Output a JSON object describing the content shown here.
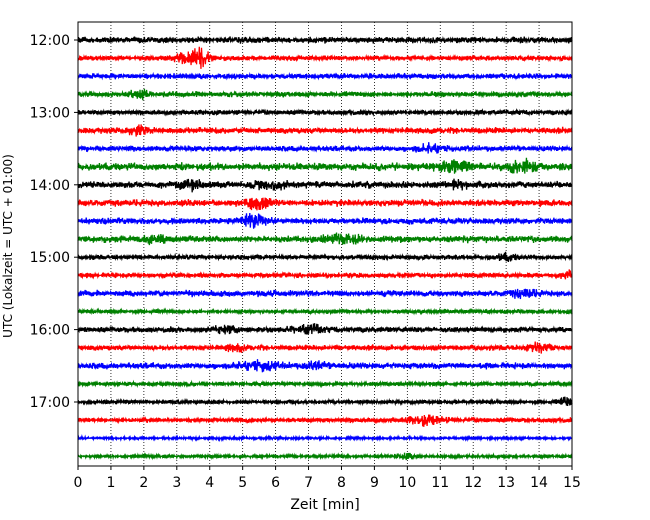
{
  "chart_data": {
    "type": "line",
    "title": "",
    "xlabel": "Zeit  [min]",
    "ylabel": "UTC (Lokalzeit = UTC + 01:00)",
    "xlim": [
      0,
      15
    ],
    "x_ticks": [
      "0",
      "1",
      "2",
      "3",
      "4",
      "5",
      "6",
      "7",
      "8",
      "9",
      "10",
      "11",
      "12",
      "13",
      "14",
      "15"
    ],
    "y_ticks": [
      "12:00",
      "13:00",
      "14:00",
      "15:00",
      "16:00",
      "17:00"
    ],
    "grid": "vertical-dotted",
    "color_cycle": [
      "#000000",
      "#ff0000",
      "#0000ff",
      "#008000"
    ],
    "trace_interval_min": 15,
    "series": [
      {
        "start": "12:00",
        "color": "#000000",
        "level": 0.45,
        "events": []
      },
      {
        "start": "12:15",
        "color": "#ff0000",
        "level": 0.35,
        "events": [
          {
            "x": 3.7,
            "amp": 1.9,
            "width": 0.25
          },
          {
            "x": 3.2,
            "amp": 0.6,
            "width": 0.3
          }
        ]
      },
      {
        "start": "12:30",
        "color": "#0000ff",
        "level": 0.4,
        "events": []
      },
      {
        "start": "12:45",
        "color": "#008000",
        "level": 0.4,
        "events": [
          {
            "x": 1.9,
            "amp": 0.6,
            "width": 0.3
          }
        ]
      },
      {
        "start": "13:00",
        "color": "#000000",
        "level": 0.35,
        "events": []
      },
      {
        "start": "13:15",
        "color": "#ff0000",
        "level": 0.45,
        "events": [
          {
            "x": 1.8,
            "amp": 0.6,
            "width": 0.3
          }
        ]
      },
      {
        "start": "13:30",
        "color": "#0000ff",
        "level": 0.4,
        "events": [
          {
            "x": 10.7,
            "amp": 0.6,
            "width": 0.4
          }
        ]
      },
      {
        "start": "13:45",
        "color": "#008000",
        "level": 0.55,
        "events": [
          {
            "x": 13.5,
            "amp": 0.8,
            "width": 0.5
          },
          {
            "x": 11.5,
            "amp": 0.6,
            "width": 0.5
          }
        ]
      },
      {
        "start": "14:00",
        "color": "#000000",
        "level": 0.5,
        "events": [
          {
            "x": 5.8,
            "amp": 0.7,
            "width": 0.4
          },
          {
            "x": 3.5,
            "amp": 0.6,
            "width": 0.4
          },
          {
            "x": 11.5,
            "amp": 0.6,
            "width": 0.3
          }
        ]
      },
      {
        "start": "14:15",
        "color": "#ff0000",
        "level": 0.5,
        "events": [
          {
            "x": 5.5,
            "amp": 0.8,
            "width": 0.4
          }
        ]
      },
      {
        "start": "14:30",
        "color": "#0000ff",
        "level": 0.45,
        "events": [
          {
            "x": 5.3,
            "amp": 1.1,
            "width": 0.3
          }
        ]
      },
      {
        "start": "14:45",
        "color": "#008000",
        "level": 0.5,
        "events": [
          {
            "x": 2.3,
            "amp": 0.5,
            "width": 0.4
          },
          {
            "x": 8.0,
            "amp": 0.5,
            "width": 0.6
          }
        ]
      },
      {
        "start": "15:00",
        "color": "#000000",
        "level": 0.35,
        "events": [
          {
            "x": 13.0,
            "amp": 0.5,
            "width": 0.3
          }
        ]
      },
      {
        "start": "15:15",
        "color": "#ff0000",
        "level": 0.35,
        "events": [
          {
            "x": 14.9,
            "amp": 0.6,
            "width": 0.2
          }
        ]
      },
      {
        "start": "15:30",
        "color": "#0000ff",
        "level": 0.45,
        "events": [
          {
            "x": 13.5,
            "amp": 0.5,
            "width": 0.4
          }
        ]
      },
      {
        "start": "15:45",
        "color": "#008000",
        "level": 0.3,
        "events": []
      },
      {
        "start": "16:00",
        "color": "#000000",
        "level": 0.4,
        "events": [
          {
            "x": 7.0,
            "amp": 0.6,
            "width": 0.5
          },
          {
            "x": 4.5,
            "amp": 0.5,
            "width": 0.4
          }
        ]
      },
      {
        "start": "16:15",
        "color": "#ff0000",
        "level": 0.4,
        "events": [
          {
            "x": 14.0,
            "amp": 0.6,
            "width": 0.4
          },
          {
            "x": 4.8,
            "amp": 0.5,
            "width": 0.3
          }
        ]
      },
      {
        "start": "16:30",
        "color": "#0000ff",
        "level": 0.45,
        "events": [
          {
            "x": 5.5,
            "amp": 0.6,
            "width": 0.6
          },
          {
            "x": 7.2,
            "amp": 0.6,
            "width": 0.3
          }
        ]
      },
      {
        "start": "16:45",
        "color": "#008000",
        "level": 0.3,
        "events": []
      },
      {
        "start": "17:00",
        "color": "#000000",
        "level": 0.3,
        "events": [
          {
            "x": 14.8,
            "amp": 0.7,
            "width": 0.2
          }
        ]
      },
      {
        "start": "17:15",
        "color": "#ff0000",
        "level": 0.35,
        "events": [
          {
            "x": 10.6,
            "amp": 0.7,
            "width": 0.5
          }
        ]
      },
      {
        "start": "17:30",
        "color": "#0000ff",
        "level": 0.2,
        "events": []
      },
      {
        "start": "17:45",
        "color": "#008000",
        "level": 0.25,
        "events": [
          {
            "x": 10.0,
            "amp": 0.4,
            "width": 0.3
          }
        ]
      }
    ]
  }
}
